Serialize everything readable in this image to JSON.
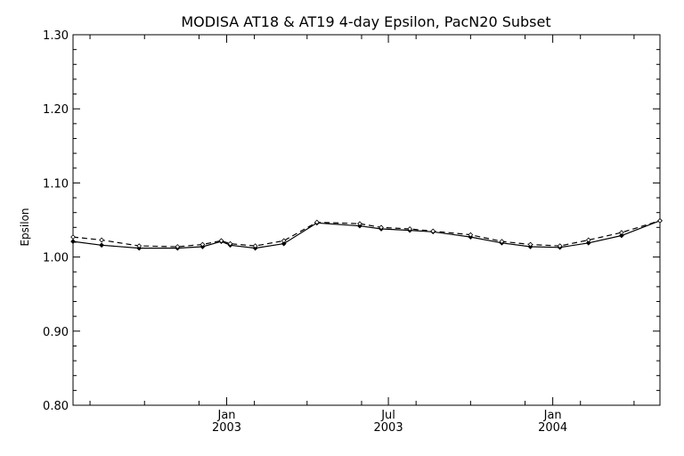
{
  "chart_data": {
    "type": "line",
    "title": "MODISA AT18 & AT19 4-day Epsilon, PacN20 Subset",
    "xlabel": "",
    "ylabel": "Epsilon",
    "ylim": [
      0.8,
      1.3
    ],
    "xlim": [
      "2002-07-13",
      "2004-04-30"
    ],
    "y_ticks": [
      "0.80",
      "0.90",
      "1.00",
      "1.10",
      "1.20",
      "1.30"
    ],
    "x_major_ticks": [
      {
        "date": "2003-01-01",
        "month": "Jan",
        "year": "2003"
      },
      {
        "date": "2003-07-01",
        "month": "Jul",
        "year": "2003"
      },
      {
        "date": "2004-01-01",
        "month": "Jan",
        "year": "2004"
      }
    ],
    "x_minor_ticks": [
      "2002-08-01",
      "2002-10-01",
      "2002-12-01",
      "2003-02-01",
      "2003-04-01",
      "2003-06-01",
      "2003-08-01",
      "2003-10-01",
      "2003-12-01",
      "2004-02-01",
      "2004-04-01"
    ],
    "grid": false,
    "series": [
      {
        "style": "solid",
        "x": [
          "2002-07-13",
          "2002-08-14",
          "2002-09-25",
          "2002-11-07",
          "2002-12-05",
          "2002-12-26",
          "2003-01-05",
          "2003-02-02",
          "2003-03-06",
          "2003-04-12",
          "2003-05-30",
          "2003-06-23",
          "2003-07-25",
          "2003-08-20",
          "2003-10-01",
          "2003-11-05",
          "2003-12-07",
          "2004-01-09",
          "2004-02-10",
          "2004-03-18",
          "2004-04-30"
        ],
        "values": [
          1.021,
          1.016,
          1.012,
          1.012,
          1.014,
          1.021,
          1.016,
          1.012,
          1.018,
          1.046,
          1.042,
          1.038,
          1.036,
          1.034,
          1.027,
          1.019,
          1.014,
          1.013,
          1.019,
          1.029,
          1.049
        ]
      },
      {
        "style": "dashed",
        "x": [
          "2002-07-13",
          "2002-08-14",
          "2002-09-25",
          "2002-11-07",
          "2002-12-05",
          "2002-12-26",
          "2003-01-05",
          "2003-02-02",
          "2003-03-06",
          "2003-04-12",
          "2003-05-30",
          "2003-06-23",
          "2003-07-25",
          "2003-08-20",
          "2003-10-01",
          "2003-11-05",
          "2003-12-07",
          "2004-01-09",
          "2004-02-10",
          "2004-03-18",
          "2004-04-30"
        ],
        "values": [
          1.027,
          1.023,
          1.015,
          1.014,
          1.017,
          1.022,
          1.018,
          1.015,
          1.022,
          1.047,
          1.045,
          1.04,
          1.038,
          1.035,
          1.03,
          1.021,
          1.017,
          1.015,
          1.023,
          1.033,
          1.049
        ]
      }
    ]
  }
}
